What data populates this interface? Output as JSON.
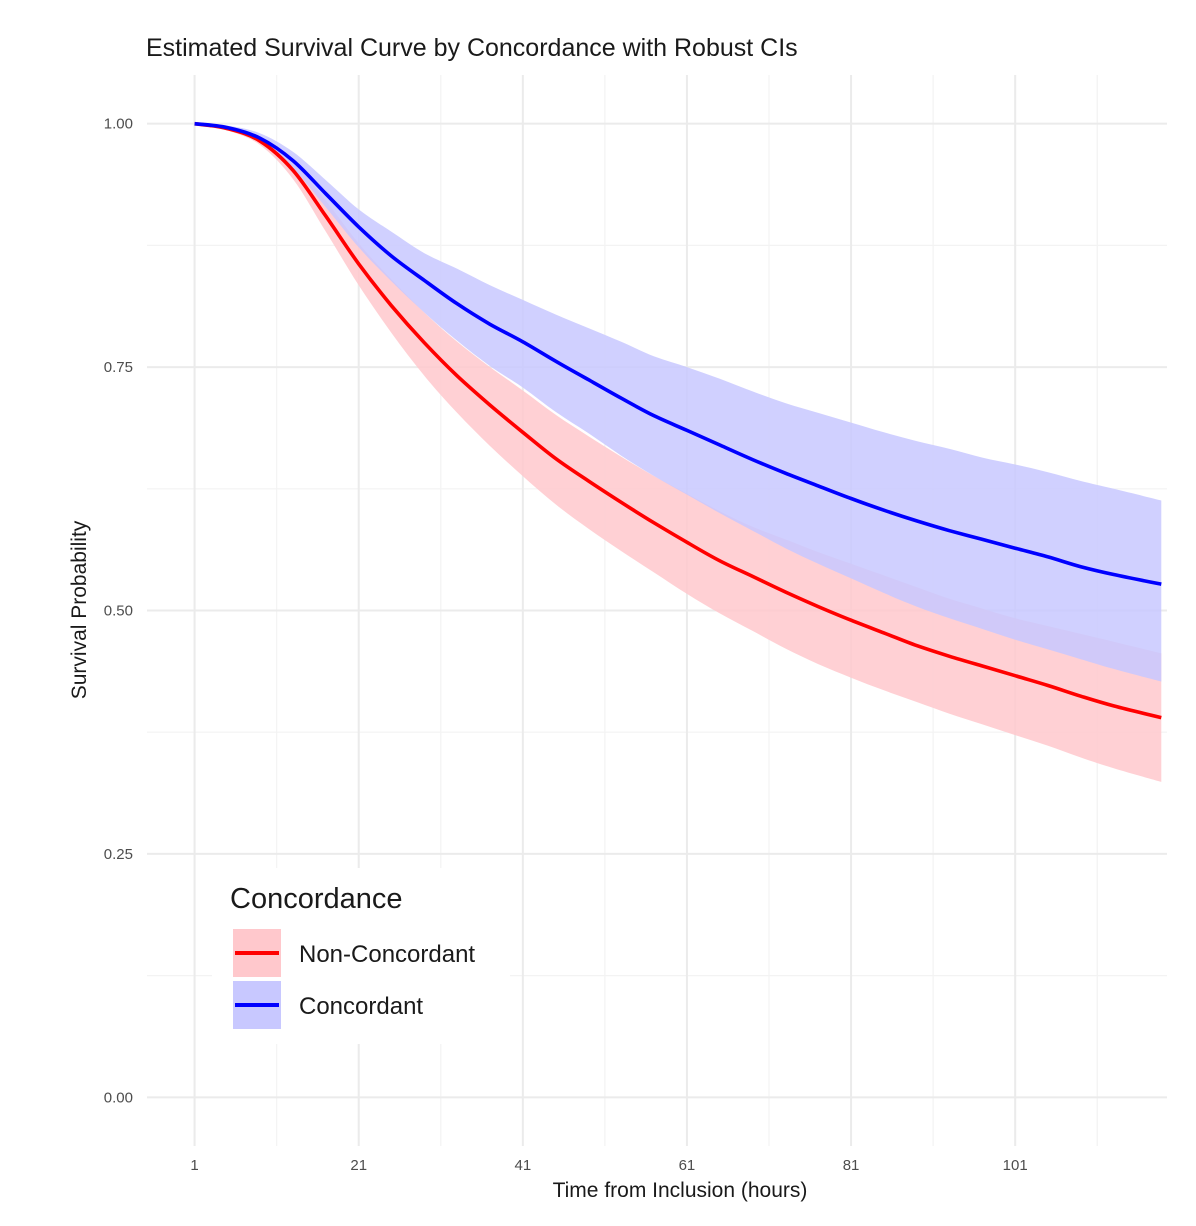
{
  "chart_data": {
    "type": "line",
    "title": "Estimated Survival Curve by Concordance with Robust CIs",
    "xlabel": "Time from Inclusion (hours)",
    "ylabel": "Survival Probability",
    "xlim": [
      -4.8,
      119.5
    ],
    "ylim": [
      -0.05,
      1.05
    ],
    "xticks": [
      1,
      21,
      41,
      61,
      81,
      101
    ],
    "xtick_labels": [
      "1",
      "21",
      "41",
      "61",
      "81",
      "101"
    ],
    "yticks": [
      0,
      0.25,
      0.5,
      0.75,
      1.0
    ],
    "ytick_labels": [
      "0.00",
      "0.25",
      "0.50",
      "0.75",
      "1.00"
    ],
    "grid": true,
    "legend": {
      "title": "Concordance",
      "position": "bottom-left",
      "entries": [
        "Non-Concordant",
        "Concordant"
      ]
    },
    "series": [
      {
        "name": "Non-Concordant",
        "color": "#ff0000",
        "band_color": "#ffc8cc",
        "x": [
          1,
          5,
          9,
          13,
          17,
          21,
          25,
          29,
          33,
          37,
          41,
          45,
          49,
          53,
          57,
          61,
          65,
          69,
          73,
          77,
          81,
          85,
          89,
          93,
          97,
          101,
          105,
          109,
          113,
          118.8
        ],
        "values": [
          1.0,
          0.995,
          0.982,
          0.952,
          0.905,
          0.856,
          0.813,
          0.775,
          0.741,
          0.711,
          0.683,
          0.656,
          0.633,
          0.611,
          0.59,
          0.57,
          0.551,
          0.535,
          0.519,
          0.504,
          0.49,
          0.477,
          0.464,
          0.453,
          0.443,
          0.433,
          0.423,
          0.412,
          0.402,
          0.39
        ],
        "lower": [
          1.0,
          0.993,
          0.978,
          0.943,
          0.889,
          0.834,
          0.785,
          0.741,
          0.703,
          0.669,
          0.638,
          0.609,
          0.584,
          0.561,
          0.539,
          0.517,
          0.497,
          0.479,
          0.461,
          0.445,
          0.431,
          0.418,
          0.406,
          0.394,
          0.383,
          0.372,
          0.361,
          0.349,
          0.338,
          0.324
        ],
        "upper": [
          1.0,
          0.997,
          0.986,
          0.961,
          0.921,
          0.877,
          0.84,
          0.806,
          0.776,
          0.75,
          0.726,
          0.701,
          0.679,
          0.658,
          0.638,
          0.62,
          0.602,
          0.586,
          0.573,
          0.56,
          0.548,
          0.536,
          0.524,
          0.512,
          0.502,
          0.492,
          0.484,
          0.476,
          0.468,
          0.456
        ]
      },
      {
        "name": "Concordant",
        "color": "#0000ff",
        "band_color": "#c8c8ff",
        "x": [
          1,
          5,
          9,
          13,
          17,
          21,
          25,
          29,
          33,
          37,
          41,
          45,
          49,
          53,
          57,
          61,
          65,
          69,
          73,
          77,
          81,
          85,
          89,
          93,
          97,
          101,
          105,
          109,
          113,
          118.8
        ],
        "values": [
          1.0,
          0.996,
          0.985,
          0.962,
          0.928,
          0.894,
          0.864,
          0.839,
          0.815,
          0.794,
          0.776,
          0.756,
          0.737,
          0.718,
          0.7,
          0.685,
          0.67,
          0.655,
          0.641,
          0.628,
          0.615,
          0.603,
          0.592,
          0.582,
          0.573,
          0.564,
          0.555,
          0.545,
          0.537,
          0.527
        ],
        "lower": [
          1.0,
          0.994,
          0.981,
          0.954,
          0.914,
          0.873,
          0.838,
          0.806,
          0.777,
          0.751,
          0.729,
          0.704,
          0.682,
          0.659,
          0.638,
          0.619,
          0.6,
          0.582,
          0.564,
          0.548,
          0.533,
          0.518,
          0.504,
          0.492,
          0.481,
          0.47,
          0.46,
          0.45,
          0.44,
          0.427
        ],
        "upper": [
          1.0,
          0.998,
          0.99,
          0.971,
          0.942,
          0.912,
          0.889,
          0.867,
          0.851,
          0.834,
          0.819,
          0.804,
          0.79,
          0.776,
          0.761,
          0.75,
          0.738,
          0.725,
          0.713,
          0.703,
          0.693,
          0.683,
          0.674,
          0.666,
          0.657,
          0.65,
          0.642,
          0.633,
          0.625,
          0.613
        ]
      }
    ]
  }
}
